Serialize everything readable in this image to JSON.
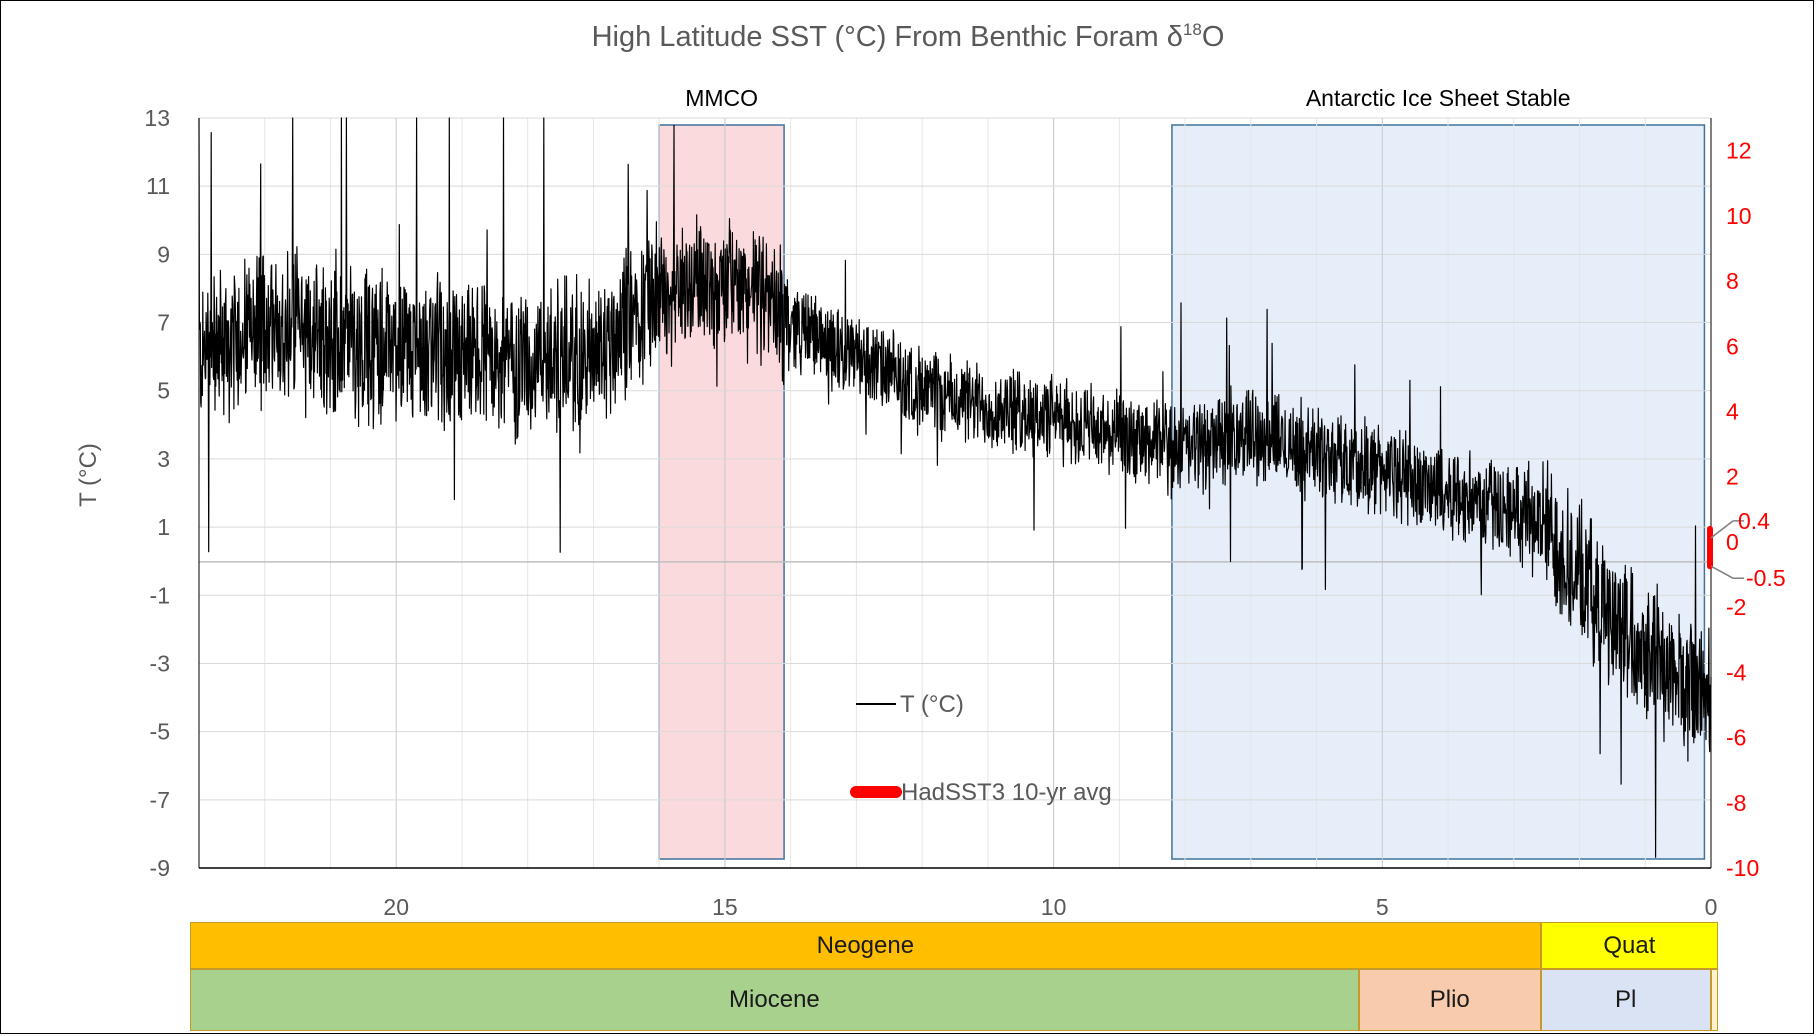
{
  "chart_data": {
    "type": "line",
    "title": "High Latitude SST (°C) From Benthic Foram δ18O",
    "title_main": "High Latitude SST (°C) From Benthic Foram δ",
    "title_sup": "18",
    "title_end": "O",
    "ylabel": "T (°C)",
    "xlabel": "",
    "x_reversed": true,
    "xlim": [
      23,
      0
    ],
    "ylim": [
      -9,
      13
    ],
    "y2lim": [
      -10,
      13
    ],
    "x_ticks": [
      "20",
      "15",
      "10",
      "5",
      "0"
    ],
    "y_ticks": [
      "13",
      "11",
      "9",
      "7",
      "5",
      "3",
      "1",
      "-1",
      "-3",
      "-5",
      "-7",
      "-9"
    ],
    "y2_ticks": [
      "12",
      "10",
      "8",
      "6",
      "4",
      "2",
      "0",
      "-2",
      "-4",
      "-6",
      "-8",
      "-10"
    ],
    "y2_annotations": [
      "0.4",
      "-0.5"
    ],
    "grid": true,
    "legend_placement": "center",
    "series": [
      {
        "name": "T (°C)",
        "color": "#000000",
        "axis": "left",
        "trend": [
          [
            23.0,
            6.0
          ],
          [
            22.0,
            7.0
          ],
          [
            21.0,
            6.6
          ],
          [
            20.0,
            6.3
          ],
          [
            19.0,
            6.0
          ],
          [
            18.0,
            5.8
          ],
          [
            17.0,
            6.0
          ],
          [
            16.5,
            7.0
          ],
          [
            16.0,
            7.8
          ],
          [
            15.5,
            8.2
          ],
          [
            15.0,
            8.2
          ],
          [
            14.5,
            7.8
          ],
          [
            14.0,
            7.0
          ],
          [
            13.0,
            6.0
          ],
          [
            12.0,
            5.0
          ],
          [
            11.0,
            4.5
          ],
          [
            10.0,
            4.2
          ],
          [
            9.0,
            3.6
          ],
          [
            8.5,
            3.4
          ],
          [
            8.0,
            3.3
          ],
          [
            7.0,
            3.8
          ],
          [
            6.0,
            3.2
          ],
          [
            5.0,
            2.7
          ],
          [
            4.0,
            2.0
          ],
          [
            3.0,
            1.5
          ],
          [
            2.5,
            1.0
          ],
          [
            2.0,
            -0.5
          ],
          [
            1.5,
            -1.6
          ],
          [
            1.0,
            -2.4
          ],
          [
            0.5,
            -3.5
          ],
          [
            0.0,
            -4.0
          ]
        ]
      },
      {
        "name": "HadSST3 10-yr avg",
        "color": "#ff0000",
        "axis": "right",
        "range": [
          -0.5,
          0.4
        ]
      }
    ],
    "annotations": [
      {
        "label": "MMCO",
        "x_start": 16.0,
        "x_end": 14.1,
        "color": "#f8cdd2"
      },
      {
        "label": "Antarctic Ice Sheet Stable",
        "x_start": 8.2,
        "x_end": 0.1,
        "color": "#dde9f7"
      }
    ],
    "timescale": {
      "row1": [
        {
          "label": "Neogene",
          "from": 23.0,
          "to": 2.58,
          "color": "#ffbf00"
        },
        {
          "label": "Quat",
          "from": 2.58,
          "to": -0.1,
          "color": "#ffff00"
        }
      ],
      "row2": [
        {
          "label": "Miocene",
          "from": 23.0,
          "to": 5.33,
          "color": "#a9d18e"
        },
        {
          "label": "Plio",
          "from": 5.33,
          "to": 2.58,
          "color": "#f8cbad"
        },
        {
          "label": "Pl",
          "from": 2.58,
          "to": 0.01,
          "color": "#dae3f3"
        },
        {
          "label": "",
          "from": 0.01,
          "to": -0.1,
          "color": "#fff2cc"
        }
      ]
    }
  }
}
